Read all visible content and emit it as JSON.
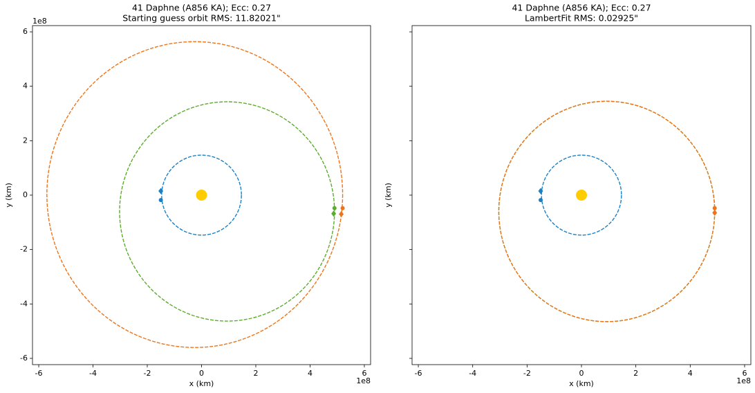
{
  "chart_data": [
    {
      "type": "orbit",
      "title": "41 Daphne (A856 KA); Ecc: 0.27",
      "subtitle": "Starting guess orbit RMS: 11.82021\"",
      "xlabel": "x (km)",
      "ylabel": "y (km)",
      "x_offset_label": "1e8",
      "y_offset_label": "1e8",
      "xlim": [
        -6.23,
        6.23
      ],
      "ylim": [
        -6.23,
        6.23
      ],
      "xticks": [
        -6,
        -4,
        -2,
        0,
        2,
        4,
        6
      ],
      "yticks": [
        -6,
        -4,
        -2,
        0,
        2,
        4,
        6
      ],
      "show_ytick_labels": true,
      "orbits": [
        {
          "color": "#1a80c4",
          "center": [
            0,
            0
          ],
          "radii": [
            1.47,
            1.47
          ]
        },
        {
          "color": "#5aac2a",
          "center": [
            0.94,
            -0.6
          ],
          "radii": [
            3.96,
            4.03
          ]
        },
        {
          "color": "#f07318",
          "center": [
            -0.25,
            0.02
          ],
          "radii": [
            5.45,
            5.62
          ]
        }
      ],
      "points": [
        {
          "color": "#ffcc00",
          "marker": "big-dot",
          "x": 0,
          "y": 0
        },
        {
          "color": "#1a80c4",
          "marker": "diamond",
          "x": -1.5,
          "y": 0.15
        },
        {
          "color": "#1a80c4",
          "marker": "dot",
          "x": -1.5,
          "y": -0.18
        },
        {
          "color": "#5aac2a",
          "marker": "dot",
          "x": 4.9,
          "y": -0.48
        },
        {
          "color": "#5aac2a",
          "marker": "diamond",
          "x": 4.87,
          "y": -0.68
        },
        {
          "color": "#f07318",
          "marker": "dot",
          "x": 5.2,
          "y": -0.48
        },
        {
          "color": "#f07318",
          "marker": "diamond",
          "x": 5.15,
          "y": -0.7
        }
      ]
    },
    {
      "type": "orbit",
      "title": "41 Daphne (A856 KA); Ecc: 0.27",
      "subtitle": "LambertFit RMS: 0.02925\"",
      "xlabel": "x (km)",
      "ylabel": "y (km)",
      "x_offset_label": "1e8",
      "xlim": [
        -6.23,
        6.23
      ],
      "ylim": [
        -6.23,
        6.23
      ],
      "xticks": [
        -6,
        -4,
        -2,
        0,
        2,
        4,
        6
      ],
      "yticks": [
        -6,
        -4,
        -2,
        0,
        2,
        4,
        6
      ],
      "show_ytick_labels": false,
      "orbits": [
        {
          "color": "#1a80c4",
          "center": [
            0,
            0
          ],
          "radii": [
            1.47,
            1.47
          ]
        },
        {
          "color": "#5aac2a",
          "center": [
            0.93,
            -0.6
          ],
          "radii": [
            3.97,
            4.05
          ]
        },
        {
          "color": "#f07318",
          "center": [
            0.93,
            -0.6
          ],
          "radii": [
            3.97,
            4.05
          ]
        }
      ],
      "points": [
        {
          "color": "#ffcc00",
          "marker": "big-dot",
          "x": 0,
          "y": 0
        },
        {
          "color": "#1a80c4",
          "marker": "diamond",
          "x": -1.5,
          "y": 0.15
        },
        {
          "color": "#1a80c4",
          "marker": "dot",
          "x": -1.5,
          "y": -0.18
        },
        {
          "color": "#f07318",
          "marker": "dot",
          "x": 4.9,
          "y": -0.48
        },
        {
          "color": "#f07318",
          "marker": "diamond",
          "x": 4.9,
          "y": -0.65
        }
      ]
    }
  ]
}
